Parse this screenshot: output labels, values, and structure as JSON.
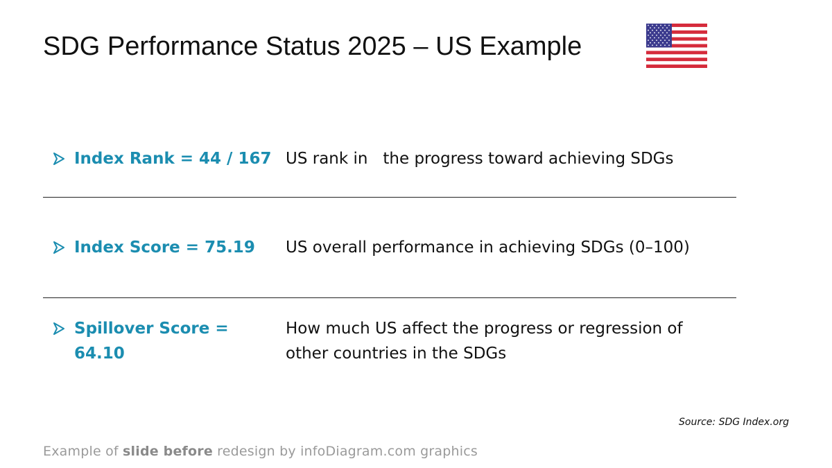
{
  "slide": {
    "title": "SDG Performance Status 2025 – US Example",
    "flag_icon": "us-flag-icon"
  },
  "rows": [
    {
      "metric": "Index Rank = 44 / 167",
      "description": "US rank in   the progress toward achieving SDGs"
    },
    {
      "metric": "Index Score = 75.19",
      "description": "US overall performance in achieving SDGs (0–100)"
    },
    {
      "metric": "Spillover Score = 64.10",
      "description": "How much US affect the progress or regression of other countries in the SDGs"
    }
  ],
  "source": "Source: SDG Index.org",
  "footer": {
    "part1": "Example of ",
    "bold": "slide before",
    "part2": " redesign by infoDiagram.com graphics"
  },
  "colors": {
    "accent": "#1b8db0",
    "text": "#111111",
    "footer": "#9a9a9a",
    "flag_red": "#d52b3b",
    "flag_blue": "#3c3b8e"
  }
}
